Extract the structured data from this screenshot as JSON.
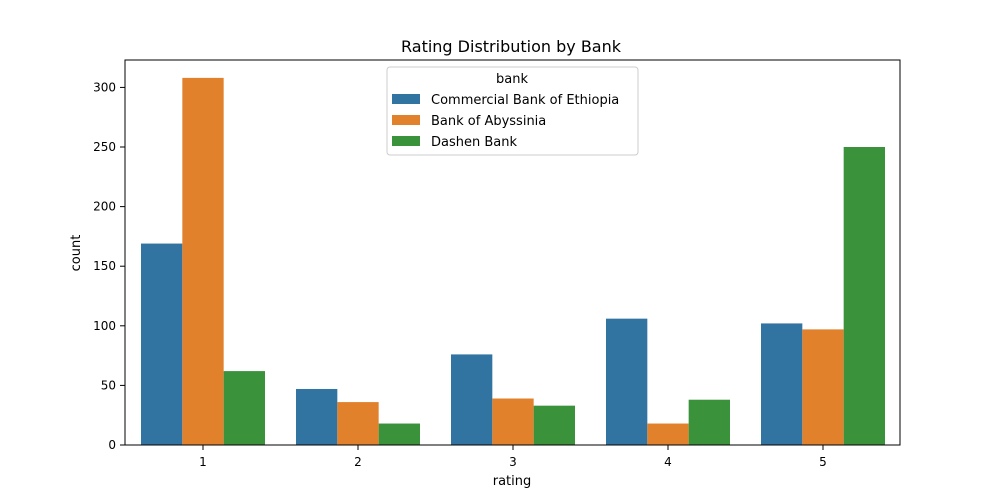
{
  "chart_data": {
    "type": "bar",
    "title": "Rating Distribution by Bank",
    "xlabel": "rating",
    "ylabel": "count",
    "categories": [
      "1",
      "2",
      "3",
      "4",
      "5"
    ],
    "ylim": [
      0,
      323
    ],
    "yticks": [
      0,
      50,
      100,
      150,
      200,
      250,
      300
    ],
    "legend": {
      "title": "bank",
      "placement": "upper center"
    },
    "series": [
      {
        "name": "Commercial Bank of Ethiopia",
        "color": "#3274a1",
        "values": [
          169,
          47,
          76,
          106,
          102
        ]
      },
      {
        "name": "Bank of Abyssinia",
        "color": "#e1812c",
        "values": [
          308,
          36,
          39,
          18,
          97
        ]
      },
      {
        "name": "Dashen Bank",
        "color": "#3a923a",
        "values": [
          62,
          18,
          33,
          38,
          250
        ]
      }
    ]
  }
}
